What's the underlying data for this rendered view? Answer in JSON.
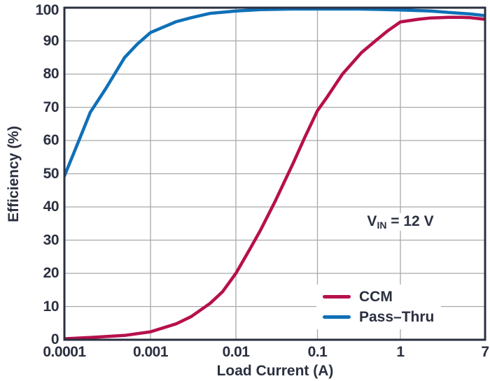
{
  "chart_data": {
    "type": "line",
    "x_scale": "log",
    "title": "",
    "xlabel": "Load Current (A)",
    "ylabel": "Efficiency (%)",
    "xlim": [
      0.0001,
      7
    ],
    "ylim": [
      0,
      100
    ],
    "grid": true,
    "x_ticks": [
      {
        "value": 0.0001,
        "label": "0.0001"
      },
      {
        "value": 0.001,
        "label": "0.001"
      },
      {
        "value": 0.01,
        "label": "0.01"
      },
      {
        "value": 0.1,
        "label": "0.1"
      },
      {
        "value": 1,
        "label": "1"
      },
      {
        "value": 7,
        "label": "7"
      }
    ],
    "y_ticks": [
      {
        "value": 0,
        "label": "0"
      },
      {
        "value": 10,
        "label": "10"
      },
      {
        "value": 20,
        "label": "20"
      },
      {
        "value": 30,
        "label": "30"
      },
      {
        "value": 40,
        "label": "40"
      },
      {
        "value": 50,
        "label": "50"
      },
      {
        "value": 60,
        "label": "60"
      },
      {
        "value": 70,
        "label": "70"
      },
      {
        "value": 80,
        "label": "80"
      },
      {
        "value": 90,
        "label": "90"
      },
      {
        "value": 100,
        "label": "100"
      }
    ],
    "annotation": {
      "text": "VIN = 12 V",
      "prefix": "V",
      "sub": "IN",
      "suffix": " = 12 V"
    },
    "legend": {
      "position": "lower-right",
      "entries": [
        {
          "name": "CCM",
          "color": "#b7104c"
        },
        {
          "name": "Pass–Thru",
          "color": "#0f70b7"
        }
      ]
    },
    "series": [
      {
        "name": "CCM",
        "color": "#b7104c",
        "points": [
          [
            0.0001,
            0.3
          ],
          [
            0.0002,
            0.7
          ],
          [
            0.0005,
            1.3
          ],
          [
            0.001,
            2.4
          ],
          [
            0.002,
            4.8
          ],
          [
            0.003,
            7.0
          ],
          [
            0.005,
            11.0
          ],
          [
            0.007,
            14.5
          ],
          [
            0.01,
            20.0
          ],
          [
            0.015,
            27.5
          ],
          [
            0.02,
            33.0
          ],
          [
            0.03,
            41.5
          ],
          [
            0.05,
            53.0
          ],
          [
            0.07,
            61.0
          ],
          [
            0.1,
            69.0
          ],
          [
            0.13,
            73.0
          ],
          [
            0.2,
            80.0
          ],
          [
            0.34,
            86.5
          ],
          [
            0.5,
            90.0
          ],
          [
            0.7,
            93.0
          ],
          [
            1,
            95.7
          ],
          [
            1.5,
            96.5
          ],
          [
            2,
            96.9
          ],
          [
            3,
            97.1
          ],
          [
            4,
            97.1
          ],
          [
            5,
            97.0
          ],
          [
            7,
            96.5
          ]
        ]
      },
      {
        "name": "Pass–Thru",
        "color": "#0f70b7",
        "points": [
          [
            0.0001,
            49.3
          ],
          [
            0.00015,
            60.5
          ],
          [
            0.0002,
            68.5
          ],
          [
            0.0003,
            75.5
          ],
          [
            0.0005,
            85.0
          ],
          [
            0.0007,
            89.0
          ],
          [
            0.001,
            92.5
          ],
          [
            0.002,
            95.8
          ],
          [
            0.003,
            97.0
          ],
          [
            0.005,
            98.3
          ],
          [
            0.01,
            99.0
          ],
          [
            0.02,
            99.4
          ],
          [
            0.05,
            99.6
          ],
          [
            0.1,
            99.6
          ],
          [
            0.3,
            99.6
          ],
          [
            0.5,
            99.5
          ],
          [
            1,
            99.3
          ],
          [
            2,
            99.0
          ],
          [
            3,
            98.6
          ],
          [
            5,
            98.1
          ],
          [
            7,
            97.6
          ]
        ]
      }
    ]
  },
  "colors": {
    "text": "#2b3040",
    "border": "#2b3040",
    "grid": "#a7a9ac",
    "background": "#ffffff"
  }
}
